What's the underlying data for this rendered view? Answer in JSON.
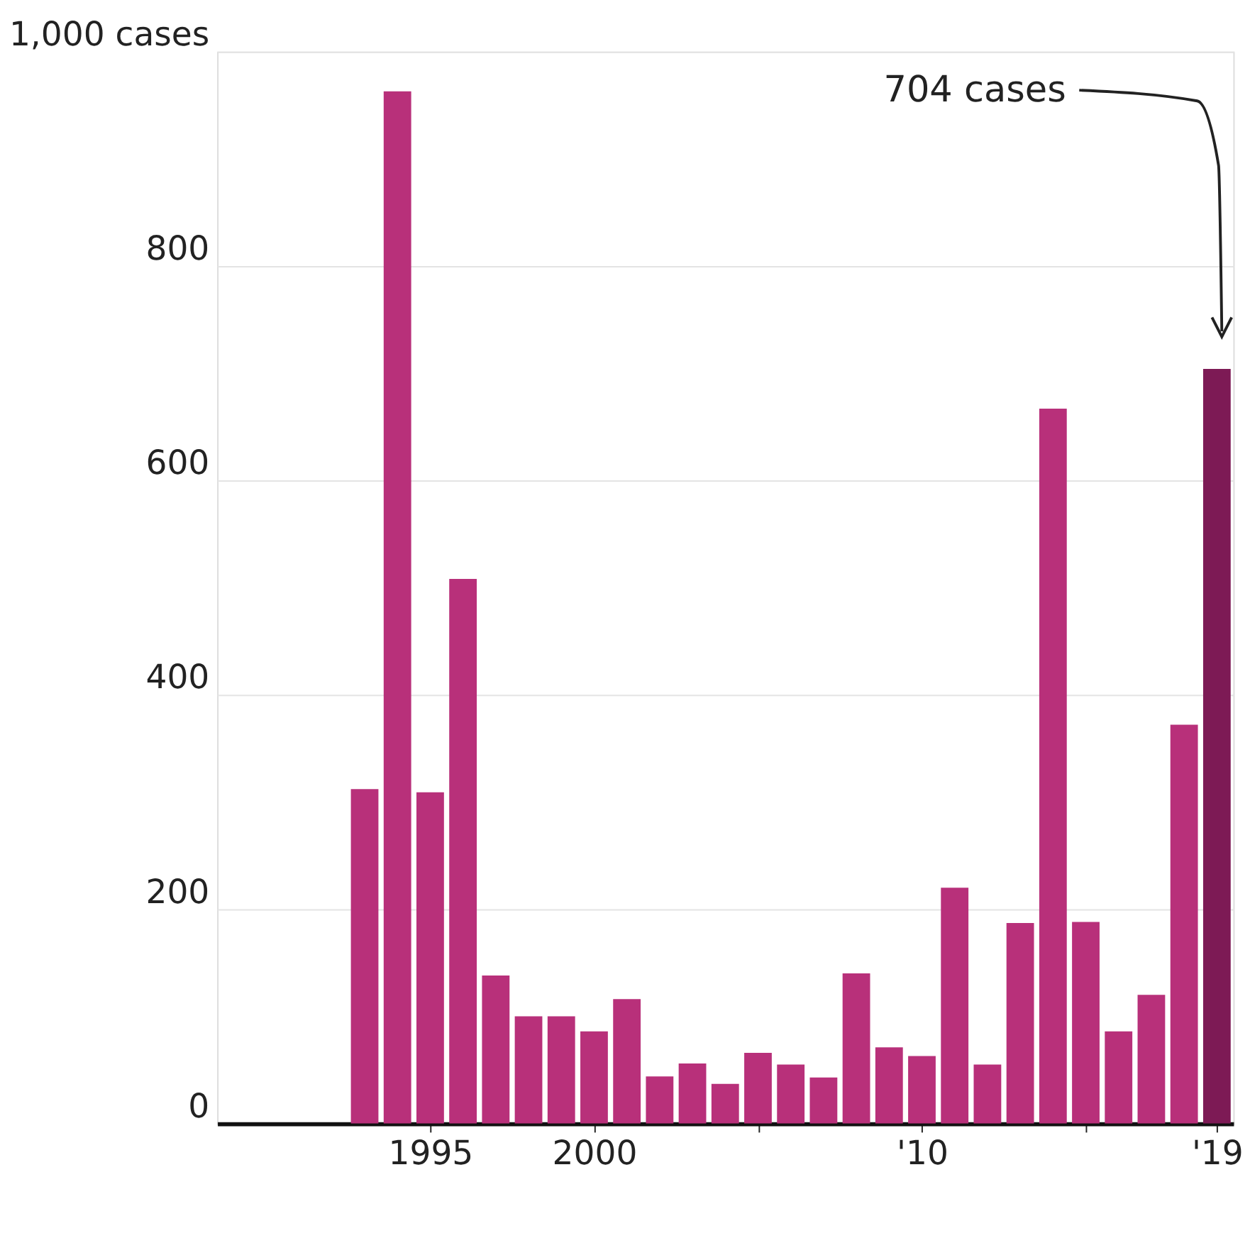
{
  "chart_data": {
    "type": "bar",
    "x": [
      1993,
      1994,
      1995,
      1996,
      1997,
      1998,
      1999,
      2000,
      2001,
      2002,
      2003,
      2004,
      2005,
      2006,
      2007,
      2008,
      2009,
      2010,
      2011,
      2012,
      2013,
      2014,
      2015,
      2016,
      2017,
      2018,
      2019
    ],
    "values": [
      312,
      963,
      309,
      508,
      138,
      100,
      100,
      86,
      116,
      44,
      56,
      37,
      66,
      55,
      43,
      140,
      71,
      63,
      220,
      55,
      187,
      667,
      188,
      86,
      120,
      372,
      704
    ],
    "colors": [
      "#b8307a",
      "#b8307a",
      "#b8307a",
      "#b8307a",
      "#b8307a",
      "#b8307a",
      "#b8307a",
      "#b8307a",
      "#b8307a",
      "#b8307a",
      "#b8307a",
      "#b8307a",
      "#b8307a",
      "#b8307a",
      "#b8307a",
      "#b8307a",
      "#b8307a",
      "#b8307a",
      "#b8307a",
      "#b8307a",
      "#b8307a",
      "#b8307a",
      "#b8307a",
      "#b8307a",
      "#b8307a",
      "#b8307a",
      "#7d1a55"
    ],
    "xlim": [
      1988.5,
      2019.5
    ],
    "xticks": [
      {
        "value": 1995,
        "label": "1995"
      },
      {
        "value": 2000,
        "label": "2000"
      },
      {
        "value": 2005,
        "label": null
      },
      {
        "value": 2010,
        "label": "'10"
      },
      {
        "value": 2015,
        "label": null
      },
      {
        "value": 2019,
        "label": "'19"
      }
    ],
    "ylim": [
      0,
      1000
    ],
    "yticks": [
      0,
      200,
      400,
      600,
      800,
      {
        "value": 1000,
        "label": "1,000 cases"
      }
    ],
    "grid": "y",
    "annotations": [
      "704 cases"
    ]
  }
}
